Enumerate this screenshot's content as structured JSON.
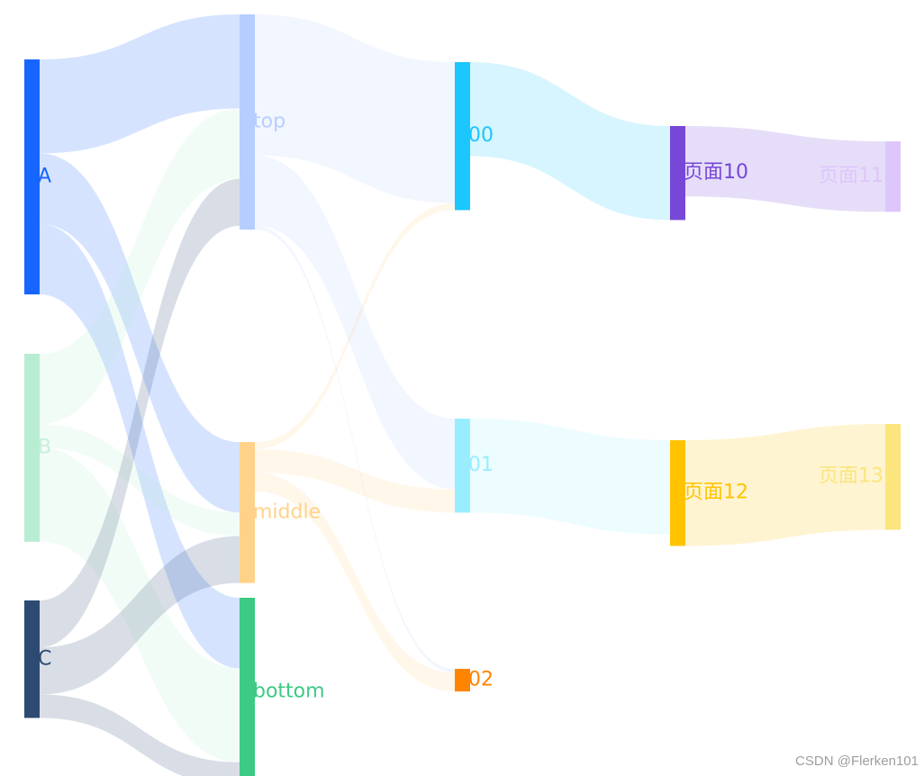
{
  "chart_data": {
    "type": "sankey",
    "title": "",
    "nodes": [
      {
        "id": "A",
        "label": "A",
        "depth": 0,
        "color": "#1765FF",
        "opacity": 1.0,
        "label_color": "#1765FF"
      },
      {
        "id": "B",
        "label": "B",
        "depth": 0,
        "color": "#B9EDD3",
        "opacity": 1.0,
        "label_color": "#C6F0DA"
      },
      {
        "id": "C",
        "label": "C",
        "depth": 0,
        "color": "#2C4A72",
        "opacity": 1.0,
        "label_color": "#2C4A72"
      },
      {
        "id": "top",
        "label": "top",
        "depth": 1,
        "color": "#B6CEFF",
        "opacity": 1.0,
        "label_color": "#B6CEFF"
      },
      {
        "id": "middle",
        "label": "middle",
        "depth": 1,
        "color": "#FFD28A",
        "opacity": 1.0,
        "label_color": "#FFD28A"
      },
      {
        "id": "bottom",
        "label": "bottom",
        "depth": 1,
        "color": "#3DCA84",
        "opacity": 1.0,
        "label_color": "#3DCA84"
      },
      {
        "id": "00",
        "label": "00",
        "depth": 2,
        "color": "#1CC6FF",
        "opacity": 1.0,
        "label_color": "#1CC6FF"
      },
      {
        "id": "01",
        "label": "01",
        "depth": 2,
        "color": "#98EEFF",
        "opacity": 1.0,
        "label_color": "#98EEFF"
      },
      {
        "id": "02",
        "label": "02",
        "depth": 2,
        "color": "#FF8500",
        "opacity": 1.0,
        "label_color": "#FF8500"
      },
      {
        "id": "p10",
        "label": "页面10",
        "depth": 3,
        "color": "#7747D8",
        "opacity": 1.0,
        "label_color": "#7747D8"
      },
      {
        "id": "p12",
        "label": "页面12",
        "depth": 3,
        "color": "#FFC300",
        "opacity": 1.0,
        "label_color": "#FFC300"
      },
      {
        "id": "p11",
        "label": "页面11",
        "depth": 4,
        "color": "#DCC6FB",
        "opacity": 1.0,
        "label_color": "#DCC6FB"
      },
      {
        "id": "p13",
        "label": "页面13",
        "depth": 4,
        "color": "#FBE57C",
        "opacity": 1.0,
        "label_color": "#FBE57C"
      }
    ],
    "links": [
      {
        "source": "A",
        "target": "top",
        "value": 20
      },
      {
        "source": "A",
        "target": "middle",
        "value": 15
      },
      {
        "source": "A",
        "target": "bottom",
        "value": 15
      },
      {
        "source": "B",
        "target": "top",
        "value": 15
      },
      {
        "source": "B",
        "target": "middle",
        "value": 5
      },
      {
        "source": "B",
        "target": "bottom",
        "value": 20
      },
      {
        "source": "C",
        "target": "top",
        "value": 10
      },
      {
        "source": "C",
        "target": "middle",
        "value": 10
      },
      {
        "source": "C",
        "target": "bottom",
        "value": 5
      },
      {
        "source": "top",
        "target": "00",
        "value": 30
      },
      {
        "source": "top",
        "target": "01",
        "value": 15
      },
      {
        "source": "top",
        "target": "02",
        "value": 0.8
      },
      {
        "source": "middle",
        "target": "00",
        "value": 1.5
      },
      {
        "source": "middle",
        "target": "01",
        "value": 5
      },
      {
        "source": "middle",
        "target": "02",
        "value": 4
      },
      {
        "source": "00",
        "target": "p10",
        "value": 20
      },
      {
        "source": "01",
        "target": "p12",
        "value": 20
      },
      {
        "source": "p10",
        "target": "p11",
        "value": 15
      },
      {
        "source": "p12",
        "target": "p13",
        "value": 22.5
      }
    ]
  },
  "watermark": "CSDN @Flerken101"
}
